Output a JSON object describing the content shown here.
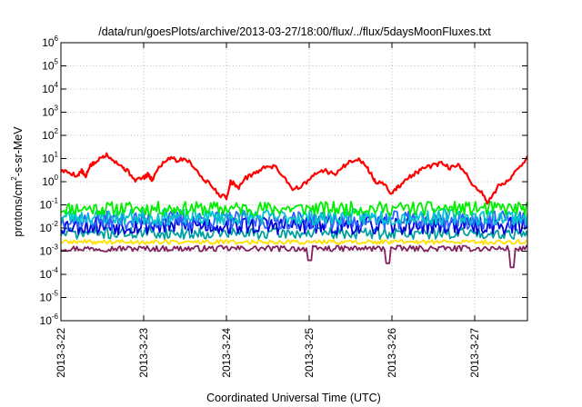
{
  "chart_data": {
    "type": "line",
    "title": "/data/run/goesPlots/archive/2013-03-27/18:00/flux/../flux/5daysMoonFluxes.txt",
    "xlabel": "Coordinated Universal Time (UTC)",
    "ylabel_parts": [
      "protons/cm",
      "2",
      "-s-sr-MeV"
    ],
    "y_scale": "log",
    "ylim": [
      1e-06,
      1000000.0
    ],
    "y_ticks": [
      {
        "base": "10",
        "exp": "6",
        "value": 1000000.0
      },
      {
        "base": "10",
        "exp": "5",
        "value": 100000.0
      },
      {
        "base": "10",
        "exp": "4",
        "value": 10000.0
      },
      {
        "base": "10",
        "exp": "3",
        "value": 1000.0
      },
      {
        "base": "10",
        "exp": "2",
        "value": 100.0
      },
      {
        "base": "10",
        "exp": "1",
        "value": 10.0
      },
      {
        "base": "10",
        "exp": "0",
        "value": 1
      },
      {
        "base": "10",
        "exp": "-1",
        "value": 0.1
      },
      {
        "base": "10",
        "exp": "-2",
        "value": 0.01
      },
      {
        "base": "10",
        "exp": "-3",
        "value": 0.001
      },
      {
        "base": "10",
        "exp": "-4",
        "value": 0.0001
      },
      {
        "base": "10",
        "exp": "-5",
        "value": 1e-05
      },
      {
        "base": "10",
        "exp": "-6",
        "value": 1e-06
      }
    ],
    "x_ticks": [
      "2013-3-22",
      "2013-3-23",
      "2013-3-24",
      "2013-3-25",
      "2013-3-26",
      "2013-3-27"
    ],
    "xlim_days": [
      0,
      5.78
    ],
    "grid": true,
    "series": [
      {
        "color": "#ff0000",
        "x": [
          0,
          0.1,
          0.2,
          0.25,
          0.3,
          0.35,
          0.4,
          0.5,
          0.55,
          0.65,
          0.75,
          0.8,
          0.9,
          1.0,
          1.05,
          1.1,
          1.2,
          1.3,
          1.35,
          1.4,
          1.5,
          1.6,
          1.7,
          1.8,
          1.9,
          2.0,
          2.05,
          2.1,
          2.15,
          2.2,
          2.3,
          2.4,
          2.5,
          2.6,
          2.7,
          2.8,
          2.9,
          3.0,
          3.1,
          3.2,
          3.3,
          3.4,
          3.5,
          3.6,
          3.7,
          3.75,
          3.8,
          3.9,
          4.0,
          4.05,
          4.1,
          4.2,
          4.3,
          4.4,
          4.5,
          4.6,
          4.7,
          4.8,
          4.9,
          5.0,
          5.1,
          5.15,
          5.2,
          5.3,
          5.4,
          5.5,
          5.6,
          5.7,
          5.78
        ],
        "y": [
          3,
          2.5,
          1.8,
          3,
          1.5,
          5,
          6,
          12,
          15,
          8,
          4,
          3,
          1.2,
          1.5,
          2,
          1.2,
          5,
          10,
          12,
          8,
          10,
          5,
          1.5,
          0.8,
          0.3,
          0.2,
          1,
          0.8,
          0.5,
          1.2,
          2,
          3,
          5,
          4,
          1.5,
          0.5,
          0.6,
          1.2,
          2.5,
          3,
          2,
          4,
          8,
          10,
          4,
          2,
          1,
          0.8,
          0.3,
          0.5,
          0.7,
          1.5,
          2.5,
          4,
          5,
          6,
          4,
          5,
          2,
          0.6,
          0.3,
          0.12,
          0.2,
          0.8,
          1,
          3,
          8,
          18,
          40
        ]
      },
      {
        "color": "#00ee00",
        "base": 0.07,
        "amp": 0.6,
        "seed": 11
      },
      {
        "color": "#00c8c8",
        "base": 0.03,
        "amp": 0.7,
        "seed": 23
      },
      {
        "color": "#3060ff",
        "base": 0.022,
        "amp": 0.8,
        "seed": 37
      },
      {
        "color": "#0000dd",
        "base": 0.013,
        "amp": 0.8,
        "seed": 53
      },
      {
        "color": "#00a0a0",
        "base": 0.006,
        "amp": 0.5,
        "seed": 71
      },
      {
        "color": "#ffe000",
        "base": 0.0025,
        "amp": 0.2,
        "seed": 89
      },
      {
        "color": "#80205e",
        "base": 0.0013,
        "amp": 0.25,
        "seed": 97,
        "dips": [
          [
            3.0,
            0.0004
          ],
          [
            3.95,
            0.0003
          ],
          [
            5.45,
            0.0002
          ]
        ]
      }
    ]
  }
}
